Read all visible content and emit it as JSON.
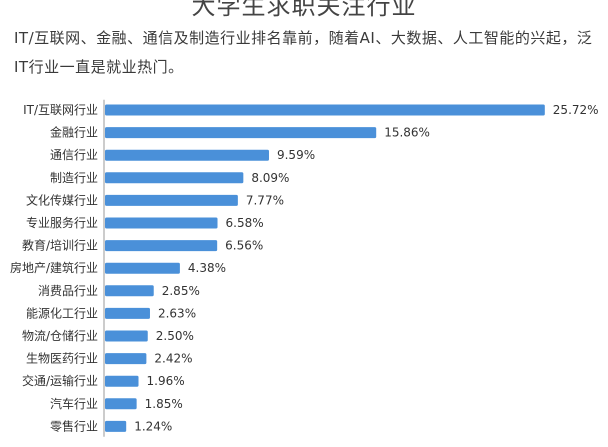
{
  "title": "大学生求职关注行业",
  "subtitle": "IT/互联网、金融、通信及制造行业排名靠前，随着AI、大数据、人工智能的兴起，泛IT行业一直是就业热门。",
  "chart_data": {
    "type": "bar",
    "orientation": "horizontal",
    "title": "大学生求职关注行业",
    "categories": [
      "IT/互联网行业",
      "金融行业",
      "通信行业",
      "制造行业",
      "文化传媒行业",
      "专业服务行业",
      "教育/培训行业",
      "房地产/建筑行业",
      "消费品行业",
      "能源化工行业",
      "物流/仓储行业",
      "生物医药行业",
      "交通/运输行业",
      "汽车行业",
      "零售行业"
    ],
    "values": [
      25.72,
      15.86,
      9.59,
      8.09,
      7.77,
      6.58,
      6.56,
      4.38,
      2.85,
      2.63,
      2.5,
      2.42,
      1.96,
      1.85,
      1.24
    ],
    "value_labels": [
      "25.72%",
      "15.86%",
      "9.59%",
      "8.09%",
      "7.77%",
      "6.58%",
      "6.56%",
      "4.38%",
      "2.85%",
      "2.63%",
      "2.50%",
      "2.42%",
      "1.96%",
      "1.85%",
      "1.24%"
    ],
    "unit": "%",
    "bar_color": "#4a90d9",
    "axis_line_color": "#9a9a9a",
    "grid": false,
    "legend": "none"
  }
}
